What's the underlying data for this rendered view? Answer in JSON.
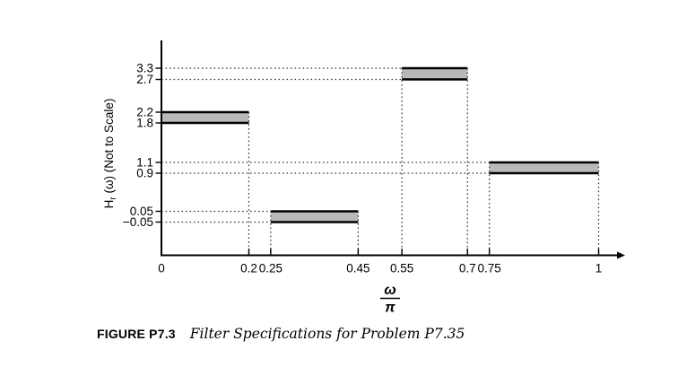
{
  "figure": {
    "caption_label": "FIGURE P7.3",
    "caption_text": "Filter Specifications for Problem P7.35"
  },
  "chart_data": {
    "type": "band",
    "description": "Piecewise-constant FIR filter magnitude specification with tolerance bands",
    "xlabel_numerator": "ω",
    "xlabel_denominator": "π",
    "ylabel_base": "H",
    "ylabel_sub": "r",
    "ylabel_rest": " (ω) (Not to Scale)",
    "xlim": [
      0,
      1
    ],
    "y_axis_note": "not to scale",
    "grid": "dotted guides from band edges to axes",
    "x_ticks": [
      {
        "value": 0,
        "label": "0"
      },
      {
        "value": 0.2,
        "label": "0.2"
      },
      {
        "value": 0.25,
        "label": "0.25"
      },
      {
        "value": 0.45,
        "label": "0.45"
      },
      {
        "value": 0.55,
        "label": "0.55"
      },
      {
        "value": 0.7,
        "label": "0.7"
      },
      {
        "value": 0.75,
        "label": "0.75"
      },
      {
        "value": 1,
        "label": "1"
      }
    ],
    "y_ticks": [
      {
        "value": 3.3,
        "label": "3.3"
      },
      {
        "value": 2.7,
        "label": "2.7"
      },
      {
        "value": 2.2,
        "label": "2.2"
      },
      {
        "value": 1.8,
        "label": "1.8"
      },
      {
        "value": 1.1,
        "label": "1.1"
      },
      {
        "value": 0.9,
        "label": "0.9"
      },
      {
        "value": 0.05,
        "label": "0.05"
      },
      {
        "value": -0.05,
        "label": "−0.05"
      }
    ],
    "bands": [
      {
        "name": "band-1",
        "x_from": 0,
        "x_to": 0.2,
        "y_from": 1.8,
        "y_to": 2.2
      },
      {
        "name": "band-2",
        "x_from": 0.25,
        "x_to": 0.45,
        "y_from": -0.05,
        "y_to": 0.05
      },
      {
        "name": "band-3",
        "x_from": 0.55,
        "x_to": 0.7,
        "y_from": 2.7,
        "y_to": 3.3
      },
      {
        "name": "band-4",
        "x_from": 0.75,
        "x_to": 1,
        "y_from": 0.9,
        "y_to": 1.1
      }
    ],
    "band_fill": "#b9b9b9",
    "line_color": "#000000",
    "guide_color": "#3a3a3a"
  }
}
